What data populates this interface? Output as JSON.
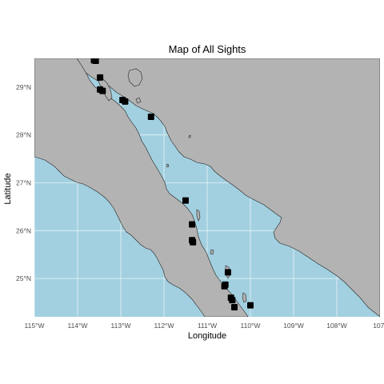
{
  "chart_data": {
    "type": "scatter",
    "title": "Map of All Sights",
    "xlabel": "Longitude",
    "ylabel": "Latitude",
    "xlim": [
      -115,
      -107
    ],
    "ylim": [
      24.2,
      29.6
    ],
    "x_ticks": [
      {
        "value": -115,
        "label": "115°W"
      },
      {
        "value": -114,
        "label": "114°W"
      },
      {
        "value": -113,
        "label": "113°W"
      },
      {
        "value": -112,
        "label": "112°W"
      },
      {
        "value": -111,
        "label": "111°W"
      },
      {
        "value": -110,
        "label": "110°W"
      },
      {
        "value": -109,
        "label": "109°W"
      },
      {
        "value": -108,
        "label": "108°W"
      },
      {
        "value": -107,
        "label": "107°"
      }
    ],
    "y_ticks": [
      {
        "value": 25,
        "label": "25°N"
      },
      {
        "value": 26,
        "label": "26°N"
      },
      {
        "value": 27,
        "label": "27°N"
      },
      {
        "value": 28,
        "label": "28°N"
      },
      {
        "value": 29,
        "label": "29°N"
      }
    ],
    "grid": true,
    "colors": {
      "water": "#a2d0e0",
      "land": "#b3b3b3",
      "coast": "#222222",
      "grid": "#e8f3f7",
      "point": "#000000"
    },
    "points": [
      {
        "lon": -113.62,
        "lat": 29.56
      },
      {
        "lon": -113.58,
        "lat": 29.55
      },
      {
        "lon": -113.48,
        "lat": 29.2
      },
      {
        "lon": -113.48,
        "lat": 28.95
      },
      {
        "lon": -113.42,
        "lat": 28.92
      },
      {
        "lon": -112.96,
        "lat": 28.73
      },
      {
        "lon": -112.9,
        "lat": 28.7
      },
      {
        "lon": -112.3,
        "lat": 28.38
      },
      {
        "lon": -111.5,
        "lat": 26.63
      },
      {
        "lon": -111.35,
        "lat": 26.13
      },
      {
        "lon": -111.35,
        "lat": 25.8
      },
      {
        "lon": -111.33,
        "lat": 25.76
      },
      {
        "lon": -110.52,
        "lat": 25.13
      },
      {
        "lon": -110.58,
        "lat": 24.87
      },
      {
        "lon": -110.6,
        "lat": 24.84
      },
      {
        "lon": -110.45,
        "lat": 24.6
      },
      {
        "lon": -110.42,
        "lat": 24.55
      },
      {
        "lon": -110.37,
        "lat": 24.4
      },
      {
        "lon": -110.0,
        "lat": 24.44
      }
    ]
  }
}
